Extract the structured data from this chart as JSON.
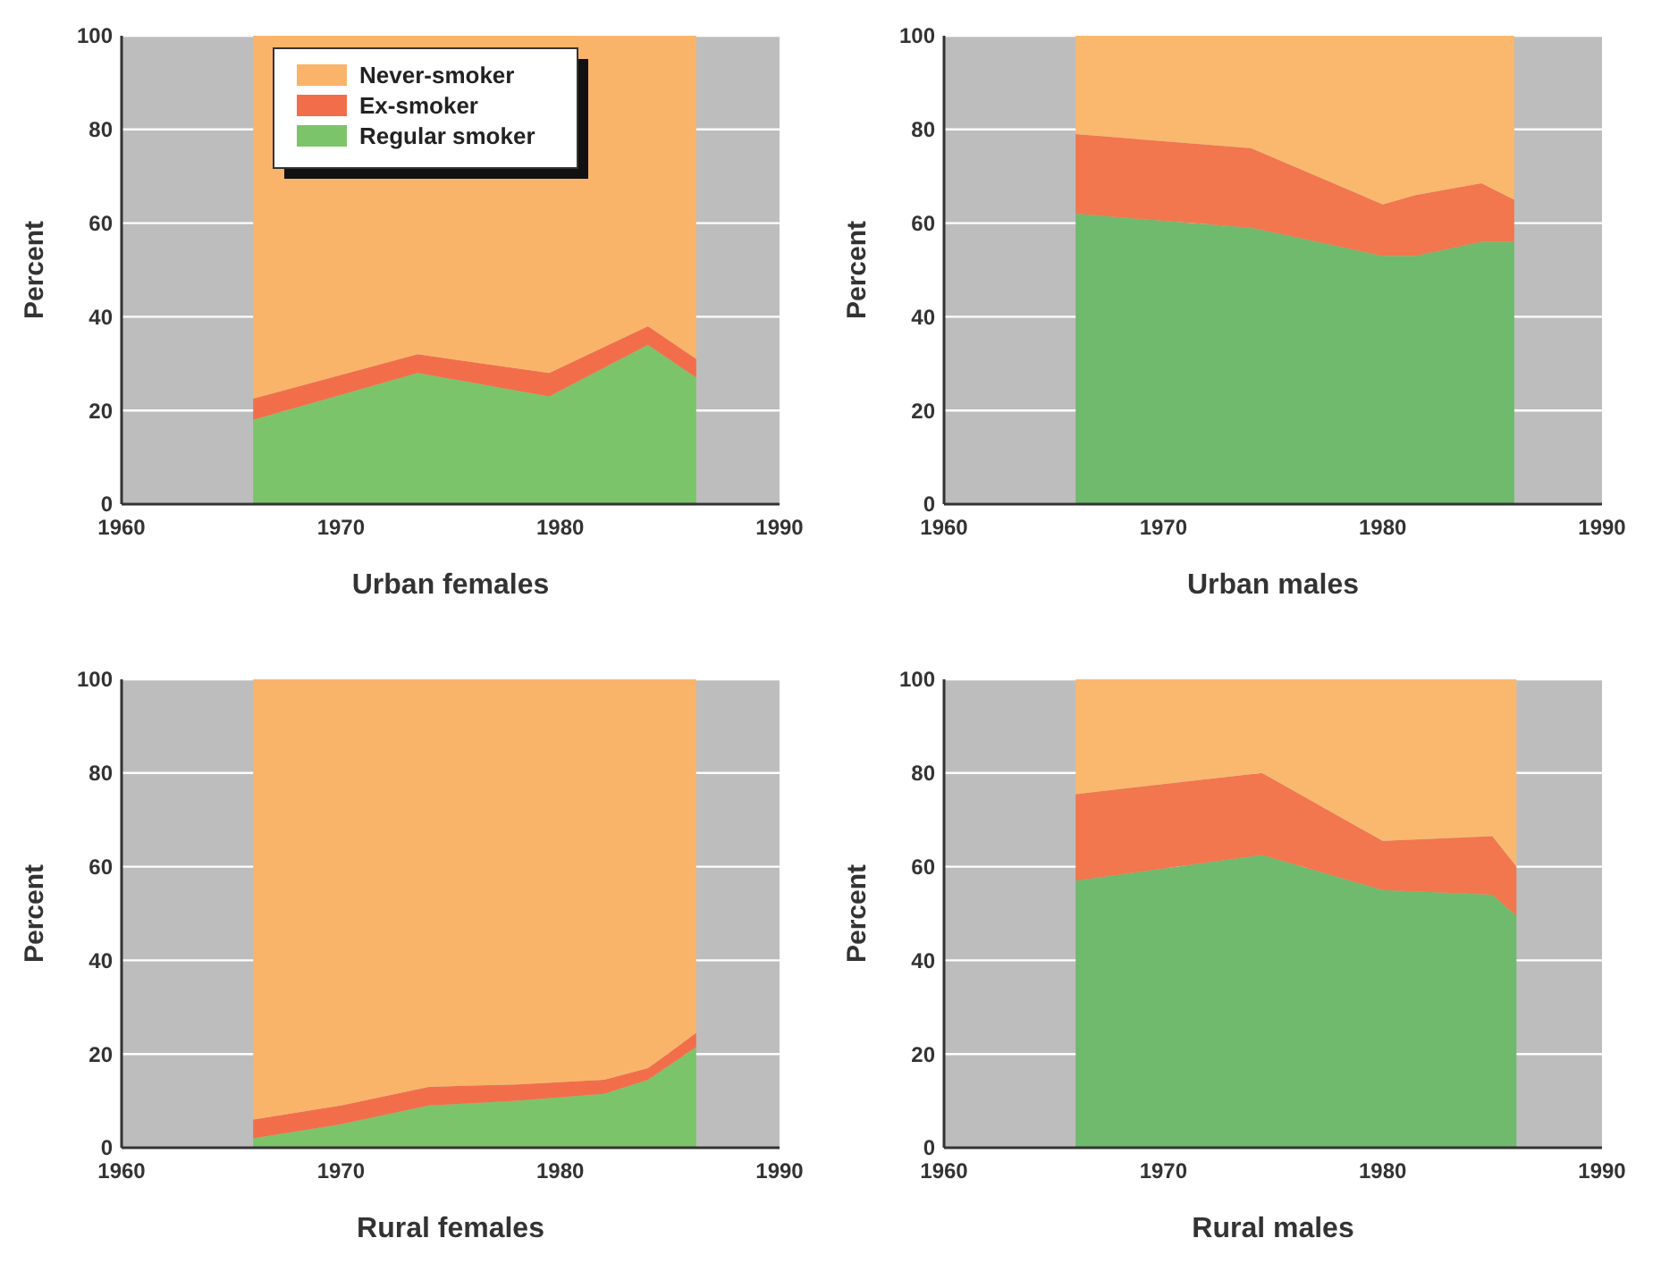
{
  "chart_data": [
    {
      "type": "area",
      "title": "Urban females",
      "ylabel": "Percent",
      "stacked": true,
      "legend": "top left",
      "grid": "y",
      "xlim": [
        1960,
        1990
      ],
      "xticks": [
        1960,
        1970,
        1980,
        1990
      ],
      "ylim": [
        0,
        100
      ],
      "yticks": [
        0,
        20,
        40,
        60,
        80,
        100
      ],
      "x": [
        1966,
        1973.5,
        1979.5,
        1984,
        1986.2
      ],
      "series": [
        {
          "name": "Regular smoker",
          "color": "#7cc46a",
          "values": [
            18,
            28,
            23,
            34,
            27
          ]
        },
        {
          "name": "Ex-smoker",
          "color": "#f26e4a",
          "values": [
            4.5,
            4,
            5,
            4,
            4
          ]
        },
        {
          "name": "Never-smoker",
          "color": "#fab46a",
          "values": [
            77.5,
            68,
            72,
            62,
            69
          ]
        }
      ]
    },
    {
      "type": "area",
      "title": "Urban males",
      "ylabel": "Percent",
      "stacked": true,
      "grid": "y",
      "xlim": [
        1960,
        1990
      ],
      "xticks": [
        1960,
        1970,
        1980,
        1990
      ],
      "ylim": [
        0,
        100
      ],
      "yticks": [
        0,
        20,
        40,
        60,
        80,
        100
      ],
      "x": [
        1966,
        1974,
        1980,
        1981.5,
        1984.5,
        1986
      ],
      "series": [
        {
          "color": "#6fba6c",
          "values": [
            62,
            59,
            53,
            53,
            56,
            56
          ]
        },
        {
          "color": "#f2764e",
          "values": [
            17,
            17,
            11,
            13,
            12.5,
            9
          ]
        },
        {
          "color": "#fab86e",
          "values": [
            21,
            24,
            36,
            34,
            31.5,
            35
          ]
        }
      ]
    },
    {
      "type": "area",
      "title": "Rural females",
      "ylabel": "Percent",
      "stacked": true,
      "grid": "y",
      "xlim": [
        1960,
        1990
      ],
      "xticks": [
        1960,
        1970,
        1980,
        1990
      ],
      "ylim": [
        0,
        100
      ],
      "yticks": [
        0,
        20,
        40,
        60,
        80,
        100
      ],
      "x": [
        1966,
        1970,
        1974,
        1978,
        1982,
        1984,
        1986.2
      ],
      "series": [
        {
          "color": "#7cc46a",
          "values": [
            2,
            5,
            9,
            10,
            11.5,
            14.5,
            21.5
          ]
        },
        {
          "color": "#f26e4a",
          "values": [
            4,
            4,
            4,
            3.5,
            3,
            2.5,
            3
          ]
        },
        {
          "color": "#fab46a",
          "values": [
            94,
            91,
            87,
            86.5,
            85.5,
            83,
            75.5
          ]
        }
      ]
    },
    {
      "type": "area",
      "title": "Rural males",
      "ylabel": "Percent",
      "stacked": true,
      "grid": "y",
      "xlim": [
        1960,
        1990
      ],
      "xticks": [
        1960,
        1970,
        1980,
        1990
      ],
      "ylim": [
        0,
        100
      ],
      "yticks": [
        0,
        20,
        40,
        60,
        80,
        100
      ],
      "x": [
        1966,
        1974.5,
        1980,
        1985,
        1986.1
      ],
      "series": [
        {
          "color": "#6fba6c",
          "values": [
            57,
            62.5,
            55,
            54,
            49.5
          ]
        },
        {
          "color": "#f2764e",
          "values": [
            18.5,
            17.5,
            10.5,
            12.5,
            10.5
          ]
        },
        {
          "color": "#fab86e",
          "values": [
            24.5,
            20,
            34.5,
            33.5,
            40
          ]
        }
      ]
    }
  ]
}
